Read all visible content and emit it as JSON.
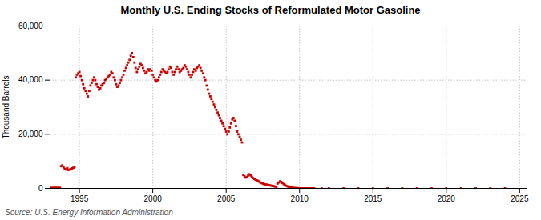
{
  "chart_data": {
    "type": "scatter",
    "title": "Monthly U.S. Ending Stocks of Reformulated Motor Gasoline",
    "ylabel": "Thousand Barrels",
    "source": "Source: U.S. Energy Information Administration",
    "color": "#cc0000",
    "marker": "square",
    "grid": true,
    "xlim": [
      1993.0,
      2025.5
    ],
    "ylim": [
      0,
      60000
    ],
    "xticks": [
      1995,
      2000,
      2005,
      2010,
      2015,
      2020,
      2025
    ],
    "yticks": [
      0,
      {
        "value": 20000,
        "label": "20,000"
      },
      {
        "value": 40000,
        "label": "40,000"
      },
      {
        "value": 60000,
        "label": "60,000"
      }
    ],
    "x": [
      1993.0,
      1993.08,
      1993.17,
      1993.25,
      1993.33,
      1993.42,
      1993.5,
      1993.58,
      1993.67,
      1993.75,
      1993.83,
      1993.92,
      1994.0,
      1994.08,
      1994.17,
      1994.25,
      1994.33,
      1994.42,
      1994.5,
      1994.58,
      1994.67,
      1994.75,
      1994.83,
      1994.92,
      1995.0,
      1995.08,
      1995.17,
      1995.25,
      1995.33,
      1995.42,
      1995.5,
      1995.58,
      1995.67,
      1995.75,
      1995.83,
      1995.92,
      1996.0,
      1996.08,
      1996.17,
      1996.25,
      1996.33,
      1996.42,
      1996.5,
      1996.58,
      1996.67,
      1996.75,
      1996.83,
      1996.92,
      1997.0,
      1997.08,
      1997.17,
      1997.25,
      1997.33,
      1997.42,
      1997.5,
      1997.58,
      1997.67,
      1997.75,
      1997.83,
      1997.92,
      1998.0,
      1998.08,
      1998.17,
      1998.25,
      1998.33,
      1998.42,
      1998.5,
      1998.58,
      1998.67,
      1998.75,
      1998.83,
      1998.92,
      1999.0,
      1999.08,
      1999.17,
      1999.25,
      1999.33,
      1999.42,
      1999.5,
      1999.58,
      1999.67,
      1999.75,
      1999.83,
      1999.92,
      2000.0,
      2000.08,
      2000.17,
      2000.25,
      2000.33,
      2000.42,
      2000.5,
      2000.58,
      2000.67,
      2000.75,
      2000.83,
      2000.92,
      2001.0,
      2001.08,
      2001.17,
      2001.25,
      2001.33,
      2001.42,
      2001.5,
      2001.58,
      2001.67,
      2001.75,
      2001.83,
      2001.92,
      2002.0,
      2002.08,
      2002.17,
      2002.25,
      2002.33,
      2002.42,
      2002.5,
      2002.58,
      2002.67,
      2002.75,
      2002.83,
      2002.92,
      2003.0,
      2003.08,
      2003.17,
      2003.25,
      2003.33,
      2003.42,
      2003.5,
      2003.58,
      2003.67,
      2003.75,
      2003.83,
      2003.92,
      2004.0,
      2004.08,
      2004.17,
      2004.25,
      2004.33,
      2004.42,
      2004.5,
      2004.58,
      2004.67,
      2004.75,
      2004.83,
      2004.92,
      2005.0,
      2005.08,
      2005.17,
      2005.25,
      2005.33,
      2005.42,
      2005.5,
      2005.58,
      2005.67,
      2005.75,
      2005.83,
      2005.92,
      2006.0,
      2006.08,
      2006.17,
      2006.25,
      2006.33,
      2006.42,
      2006.5,
      2006.58,
      2006.67,
      2006.75,
      2006.83,
      2006.92,
      2007.0,
      2007.08,
      2007.17,
      2007.25,
      2007.33,
      2007.42,
      2007.5,
      2007.58,
      2007.67,
      2007.75,
      2007.83,
      2007.92,
      2008.0,
      2008.08,
      2008.17,
      2008.25,
      2008.33,
      2008.42,
      2008.5,
      2008.58,
      2008.67,
      2008.75,
      2008.83,
      2008.92,
      2009.0,
      2009.08,
      2009.17,
      2009.25,
      2009.33,
      2009.42,
      2009.5,
      2009.58,
      2009.67,
      2009.75,
      2009.83,
      2009.92,
      2010.0,
      2010.08,
      2010.17,
      2010.25,
      2010.33,
      2010.42,
      2010.5,
      2010.58,
      2010.67,
      2010.75,
      2010.83,
      2010.92,
      2011.0,
      2011.5,
      2012.0,
      2013.0,
      2014.0,
      2015.0,
      2016.0,
      2017.0,
      2018.0,
      2019.0,
      2020.0,
      2021.0,
      2022.0,
      2023.0,
      2024.0
    ],
    "values": [
      200,
      180,
      200,
      190,
      210,
      195,
      205,
      200,
      210,
      8200,
      8500,
      7800,
      7200,
      7000,
      7500,
      6800,
      7000,
      7200,
      7400,
      7600,
      8000,
      41000,
      42000,
      42500,
      43000,
      41500,
      40000,
      38500,
      37000,
      36000,
      35000,
      34000,
      36000,
      38000,
      39000,
      40000,
      41000,
      40000,
      38500,
      37500,
      36500,
      37000,
      38000,
      38500,
      39000,
      40000,
      40500,
      41000,
      41500,
      42000,
      43000,
      42500,
      41000,
      40000,
      38500,
      37500,
      38000,
      39000,
      40000,
      41000,
      42000,
      43500,
      44500,
      45500,
      46500,
      47500,
      49000,
      50000,
      48500,
      46500,
      44500,
      43000,
      44000,
      45000,
      46000,
      45500,
      44500,
      43500,
      42500,
      43000,
      44000,
      43500,
      44000,
      43500,
      42000,
      41000,
      40000,
      39500,
      40000,
      41000,
      42000,
      43000,
      44000,
      43500,
      43000,
      42500,
      43000,
      44000,
      45000,
      44500,
      43000,
      42000,
      43000,
      44000,
      45000,
      44000,
      43000,
      43500,
      44000,
      44500,
      45500,
      45000,
      44000,
      43000,
      42000,
      41000,
      42000,
      43000,
      44000,
      43500,
      44500,
      45000,
      45500,
      44500,
      43500,
      42500,
      41000,
      40000,
      38000,
      36500,
      35000,
      34000,
      33000,
      32000,
      31000,
      30000,
      29000,
      28000,
      27000,
      26000,
      25000,
      24000,
      23000,
      22000,
      21000,
      20000,
      21000,
      22500,
      24000,
      25500,
      26000,
      25000,
      23000,
      21000,
      20000,
      19000,
      18000,
      17000,
      5000,
      4500,
      4000,
      4200,
      4800,
      5200,
      4800,
      4200,
      3800,
      3500,
      3200,
      3000,
      2800,
      2500,
      2200,
      2000,
      1800,
      1600,
      1500,
      1400,
      1300,
      1200,
      1100,
      1000,
      900,
      800,
      700,
      600,
      1800,
      2200,
      2600,
      2400,
      2000,
      1600,
      1300,
      1000,
      800,
      600,
      500,
      400,
      300,
      200,
      150,
      100,
      80,
      60,
      40,
      30,
      20,
      15,
      10,
      5,
      3,
      2,
      1,
      0,
      0,
      0,
      0,
      0,
      0,
      0,
      0,
      0,
      0,
      0,
      0,
      0,
      0,
      0,
      0,
      0,
      0
    ]
  }
}
